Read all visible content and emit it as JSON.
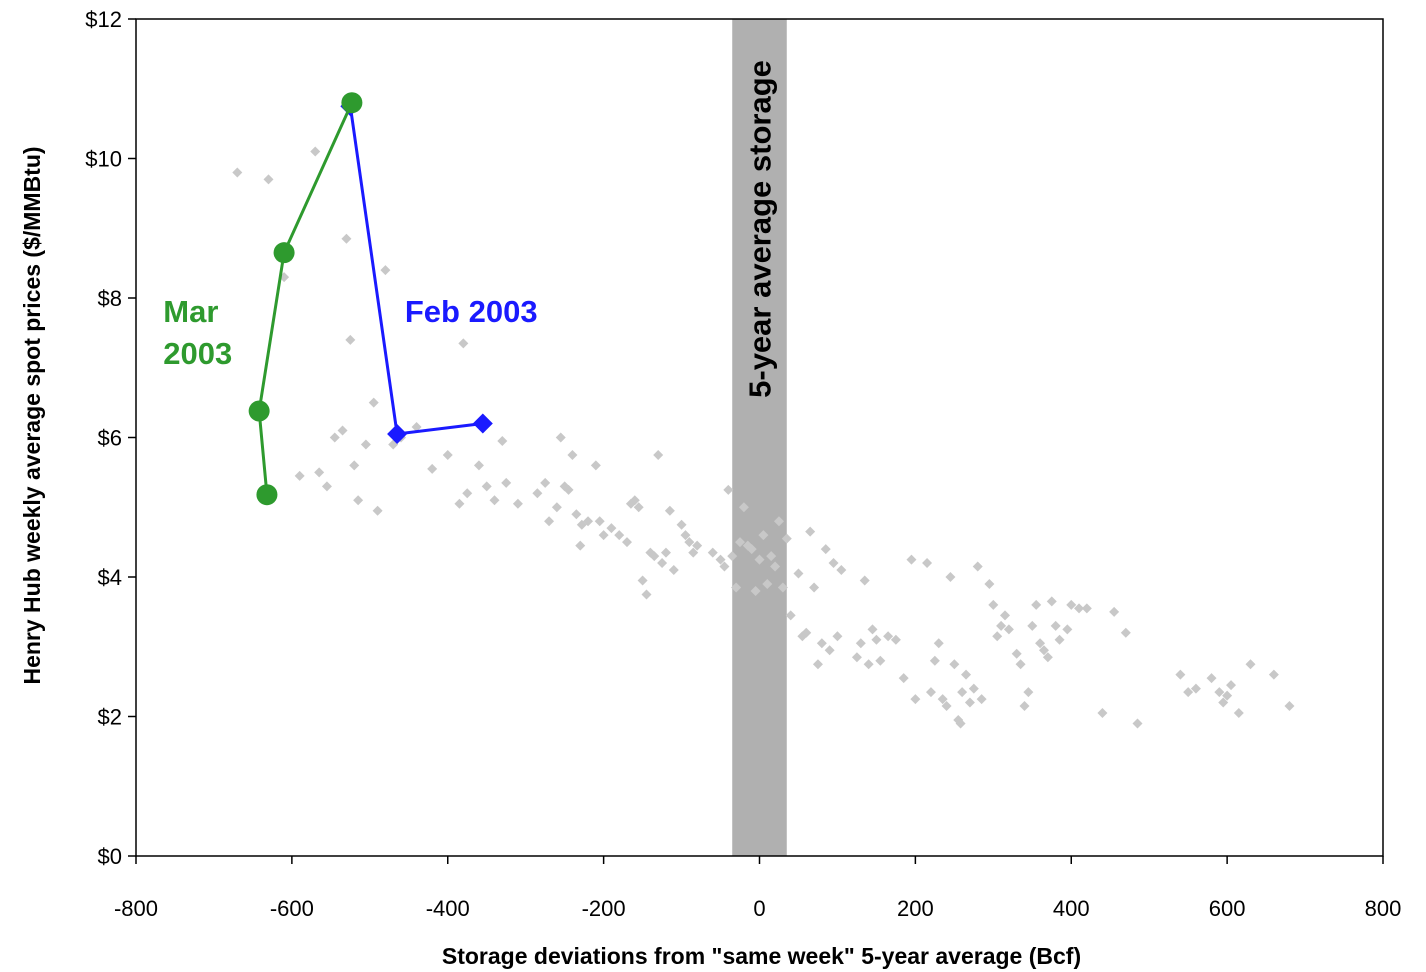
{
  "chart_data": {
    "type": "scatter",
    "xlabel": "Storage deviations from \"same week\" 5-year average (Bcf)",
    "ylabel": "Henry Hub weekly average spot prices ($/MMBtu)",
    "xlim": [
      -800,
      800
    ],
    "ylim": [
      0,
      12
    ],
    "x_ticks": [
      -800,
      -600,
      -400,
      -200,
      0,
      200,
      400,
      600,
      800
    ],
    "x_tick_labels": [
      "-800",
      "-600",
      "-400",
      "-200",
      "0",
      "200",
      "400",
      "600",
      "800"
    ],
    "y_ticks": [
      0,
      2,
      4,
      6,
      8,
      10,
      12
    ],
    "y_tick_labels": [
      "$0",
      "$2",
      "$4",
      "$6",
      "$8",
      "$10",
      "$12"
    ],
    "grid": false,
    "band": {
      "x_from": -35,
      "x_to": 35,
      "label": "5-year average storage",
      "color": "#b0b0b0"
    },
    "colors": {
      "background_scatter": "#c8c8c8",
      "feb": "#1a1aff",
      "mar": "#2e9a2e"
    },
    "series": [
      {
        "points": [
          [
            -670,
            9.8
          ],
          [
            -630,
            9.7
          ],
          [
            -570,
            10.1
          ],
          [
            -530,
            8.85
          ],
          [
            -480,
            8.4
          ],
          [
            -380,
            7.35
          ],
          [
            -610,
            8.3
          ],
          [
            -525,
            7.4
          ],
          [
            -495,
            6.5
          ],
          [
            -590,
            5.45
          ],
          [
            -565,
            5.5
          ],
          [
            -555,
            5.3
          ],
          [
            -545,
            6.0
          ],
          [
            -535,
            6.1
          ],
          [
            -520,
            5.6
          ],
          [
            -515,
            5.1
          ],
          [
            -505,
            5.9
          ],
          [
            -490,
            4.95
          ],
          [
            -470,
            5.9
          ],
          [
            -460,
            6.0
          ],
          [
            -440,
            6.15
          ],
          [
            -420,
            5.55
          ],
          [
            -400,
            5.75
          ],
          [
            -385,
            5.05
          ],
          [
            -375,
            5.2
          ],
          [
            -360,
            5.6
          ],
          [
            -350,
            5.3
          ],
          [
            -340,
            5.1
          ],
          [
            -330,
            5.95
          ],
          [
            -325,
            5.35
          ],
          [
            -310,
            5.05
          ],
          [
            -285,
            5.2
          ],
          [
            -275,
            5.35
          ],
          [
            -270,
            4.8
          ],
          [
            -260,
            5.0
          ],
          [
            -255,
            6.0
          ],
          [
            -250,
            5.3
          ],
          [
            -245,
            5.25
          ],
          [
            -240,
            5.75
          ],
          [
            -235,
            4.9
          ],
          [
            -230,
            4.45
          ],
          [
            -228,
            4.75
          ],
          [
            -220,
            4.8
          ],
          [
            -210,
            5.6
          ],
          [
            -205,
            4.8
          ],
          [
            -200,
            4.6
          ],
          [
            -190,
            4.7
          ],
          [
            -180,
            4.6
          ],
          [
            -170,
            4.5
          ],
          [
            -165,
            5.05
          ],
          [
            -160,
            5.1
          ],
          [
            -155,
            5.0
          ],
          [
            -150,
            3.95
          ],
          [
            -145,
            3.75
          ],
          [
            -140,
            4.35
          ],
          [
            -135,
            4.3
          ],
          [
            -130,
            5.75
          ],
          [
            -125,
            4.2
          ],
          [
            -120,
            4.35
          ],
          [
            -115,
            4.95
          ],
          [
            -110,
            4.1
          ],
          [
            -100,
            4.75
          ],
          [
            -95,
            4.6
          ],
          [
            -90,
            4.5
          ],
          [
            -85,
            4.35
          ],
          [
            -80,
            4.45
          ],
          [
            -60,
            4.35
          ],
          [
            -50,
            4.25
          ],
          [
            -45,
            4.15
          ],
          [
            -40,
            5.25
          ],
          [
            -35,
            4.3
          ],
          [
            -30,
            3.85
          ],
          [
            -25,
            4.5
          ],
          [
            -20,
            5.0
          ],
          [
            -15,
            4.45
          ],
          [
            -10,
            4.4
          ],
          [
            -5,
            3.8
          ],
          [
            0,
            4.25
          ],
          [
            5,
            4.6
          ],
          [
            10,
            3.9
          ],
          [
            15,
            4.3
          ],
          [
            20,
            4.15
          ],
          [
            25,
            4.8
          ],
          [
            30,
            3.85
          ],
          [
            35,
            4.55
          ],
          [
            40,
            3.45
          ],
          [
            50,
            4.05
          ],
          [
            55,
            3.15
          ],
          [
            60,
            3.2
          ],
          [
            65,
            4.65
          ],
          [
            70,
            3.85
          ],
          [
            75,
            2.75
          ],
          [
            80,
            3.05
          ],
          [
            85,
            4.4
          ],
          [
            90,
            2.95
          ],
          [
            95,
            4.2
          ],
          [
            100,
            3.15
          ],
          [
            105,
            4.1
          ],
          [
            125,
            2.85
          ],
          [
            130,
            3.05
          ],
          [
            135,
            3.95
          ],
          [
            140,
            2.75
          ],
          [
            145,
            3.25
          ],
          [
            150,
            3.1
          ],
          [
            155,
            2.8
          ],
          [
            165,
            3.15
          ],
          [
            175,
            3.1
          ],
          [
            185,
            2.55
          ],
          [
            195,
            4.25
          ],
          [
            200,
            2.25
          ],
          [
            215,
            4.2
          ],
          [
            220,
            2.35
          ],
          [
            225,
            2.8
          ],
          [
            230,
            3.05
          ],
          [
            235,
            2.25
          ],
          [
            240,
            2.15
          ],
          [
            245,
            4.0
          ],
          [
            250,
            2.75
          ],
          [
            255,
            1.95
          ],
          [
            258,
            1.9
          ],
          [
            260,
            2.35
          ],
          [
            265,
            2.6
          ],
          [
            270,
            2.2
          ],
          [
            275,
            2.4
          ],
          [
            280,
            4.15
          ],
          [
            285,
            2.25
          ],
          [
            295,
            3.9
          ],
          [
            300,
            3.6
          ],
          [
            305,
            3.15
          ],
          [
            310,
            3.3
          ],
          [
            315,
            3.45
          ],
          [
            320,
            3.25
          ],
          [
            330,
            2.9
          ],
          [
            335,
            2.75
          ],
          [
            340,
            2.15
          ],
          [
            345,
            2.35
          ],
          [
            350,
            3.3
          ],
          [
            355,
            3.6
          ],
          [
            360,
            3.05
          ],
          [
            365,
            2.95
          ],
          [
            370,
            2.85
          ],
          [
            375,
            3.65
          ],
          [
            380,
            3.3
          ],
          [
            385,
            3.1
          ],
          [
            395,
            3.25
          ],
          [
            400,
            3.6
          ],
          [
            410,
            3.55
          ],
          [
            420,
            3.55
          ],
          [
            440,
            2.05
          ],
          [
            455,
            3.5
          ],
          [
            470,
            3.2
          ],
          [
            485,
            1.9
          ],
          [
            540,
            2.6
          ],
          [
            550,
            2.35
          ],
          [
            560,
            2.4
          ],
          [
            580,
            2.55
          ],
          [
            590,
            2.35
          ],
          [
            595,
            2.2
          ],
          [
            600,
            2.3
          ],
          [
            605,
            2.45
          ],
          [
            615,
            2.05
          ],
          [
            630,
            2.75
          ],
          [
            660,
            2.6
          ],
          [
            680,
            2.15
          ]
        ]
      },
      {
        "points": [
          [
            -525,
            10.75
          ],
          [
            -465,
            6.05
          ],
          [
            -355,
            6.2
          ]
        ]
      },
      {
        "points": [
          [
            -632,
            5.18
          ],
          [
            -642,
            6.38
          ],
          [
            -610,
            8.65
          ],
          [
            -523,
            10.8
          ]
        ]
      }
    ],
    "annotations": [
      {
        "text_lines": [
          "Feb 2003"
        ],
        "x": -455,
        "y": 7.8,
        "color_key": "feb"
      },
      {
        "text_lines": [
          "Mar",
          "2003"
        ],
        "x": -765,
        "y": 7.8,
        "color_key": "mar"
      }
    ]
  }
}
